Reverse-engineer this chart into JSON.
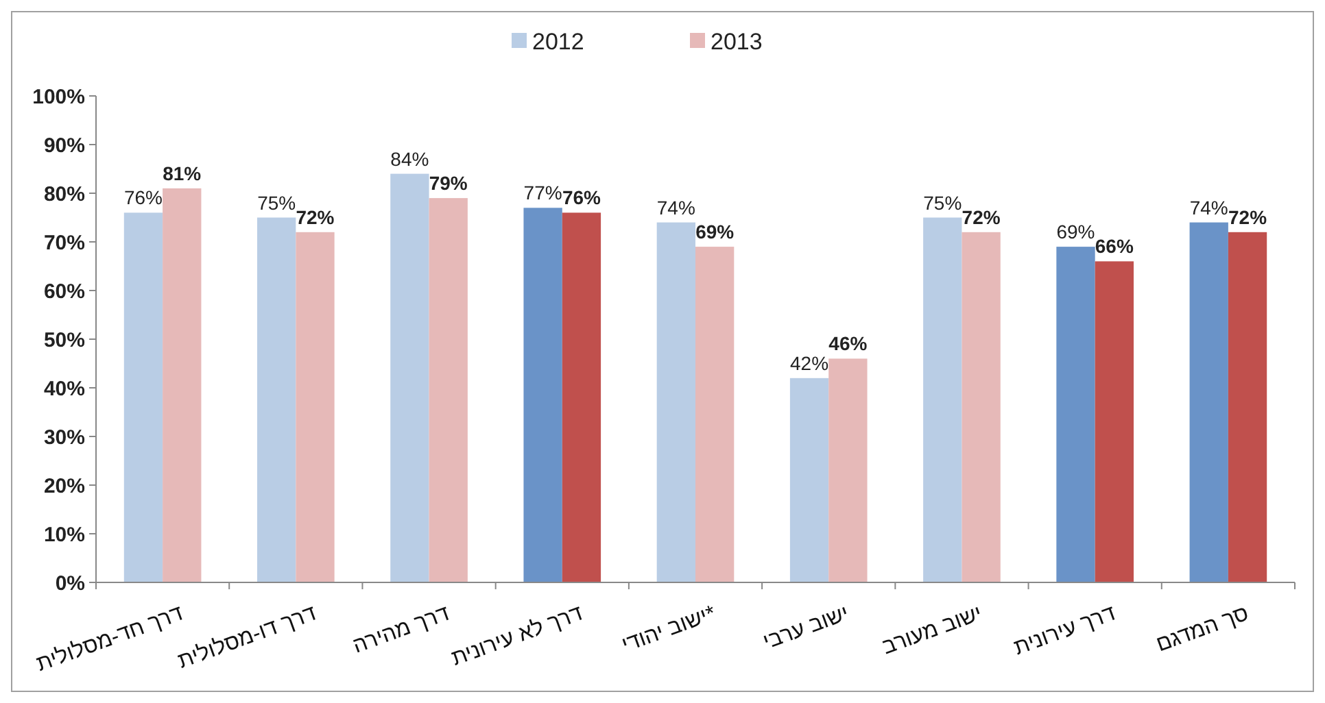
{
  "chart_data": {
    "type": "bar",
    "categories": [
      "דרך חד-מסלולית",
      "דרך דו-מסלולית",
      "דרך מהירה",
      "דרך לא עירונית",
      "ישוב יהודי*",
      "ישוב ערבי",
      "ישוב מעורב",
      "דרך עירונית",
      "סך המדגם"
    ],
    "series": [
      {
        "name": "2012",
        "color": "#b9cde5",
        "colors": [
          "#b9cde5",
          "#b9cde5",
          "#b9cde5",
          "#6a93c8",
          "#b9cde5",
          "#b9cde5",
          "#b9cde5",
          "#6a93c8",
          "#6a93c8"
        ],
        "values": [
          76,
          75,
          84,
          77,
          74,
          42,
          75,
          69,
          74
        ],
        "value_labels": [
          "76%",
          "75%",
          "84%",
          "77%",
          "74%",
          "42%",
          "75%",
          "69%",
          "74%"
        ]
      },
      {
        "name": "2013",
        "color": "#e6b9b8",
        "colors": [
          "#e6b9b8",
          "#e6b9b8",
          "#e6b9b8",
          "#c0504d",
          "#e6b9b8",
          "#e6b9b8",
          "#e6b9b8",
          "#c0504d",
          "#c0504d"
        ],
        "values": [
          81,
          72,
          79,
          76,
          69,
          46,
          72,
          66,
          72
        ],
        "value_labels": [
          "81%",
          "72%",
          "79%",
          "76%",
          "69%",
          "46%",
          "72%",
          "66%",
          "72%"
        ]
      }
    ],
    "ylim": [
      0,
      100
    ],
    "yticks": [
      {
        "value": 0,
        "label": "0%"
      },
      {
        "value": 10,
        "label": "10%"
      },
      {
        "value": 20,
        "label": "20%"
      },
      {
        "value": 30,
        "label": "30%"
      },
      {
        "value": 40,
        "label": "40%"
      },
      {
        "value": 50,
        "label": "50%"
      },
      {
        "value": 60,
        "label": "60%"
      },
      {
        "value": 70,
        "label": "70%"
      },
      {
        "value": 80,
        "label": "80%"
      },
      {
        "value": 90,
        "label": "90%"
      },
      {
        "value": 100,
        "label": "100%"
      }
    ],
    "legend": "top"
  }
}
